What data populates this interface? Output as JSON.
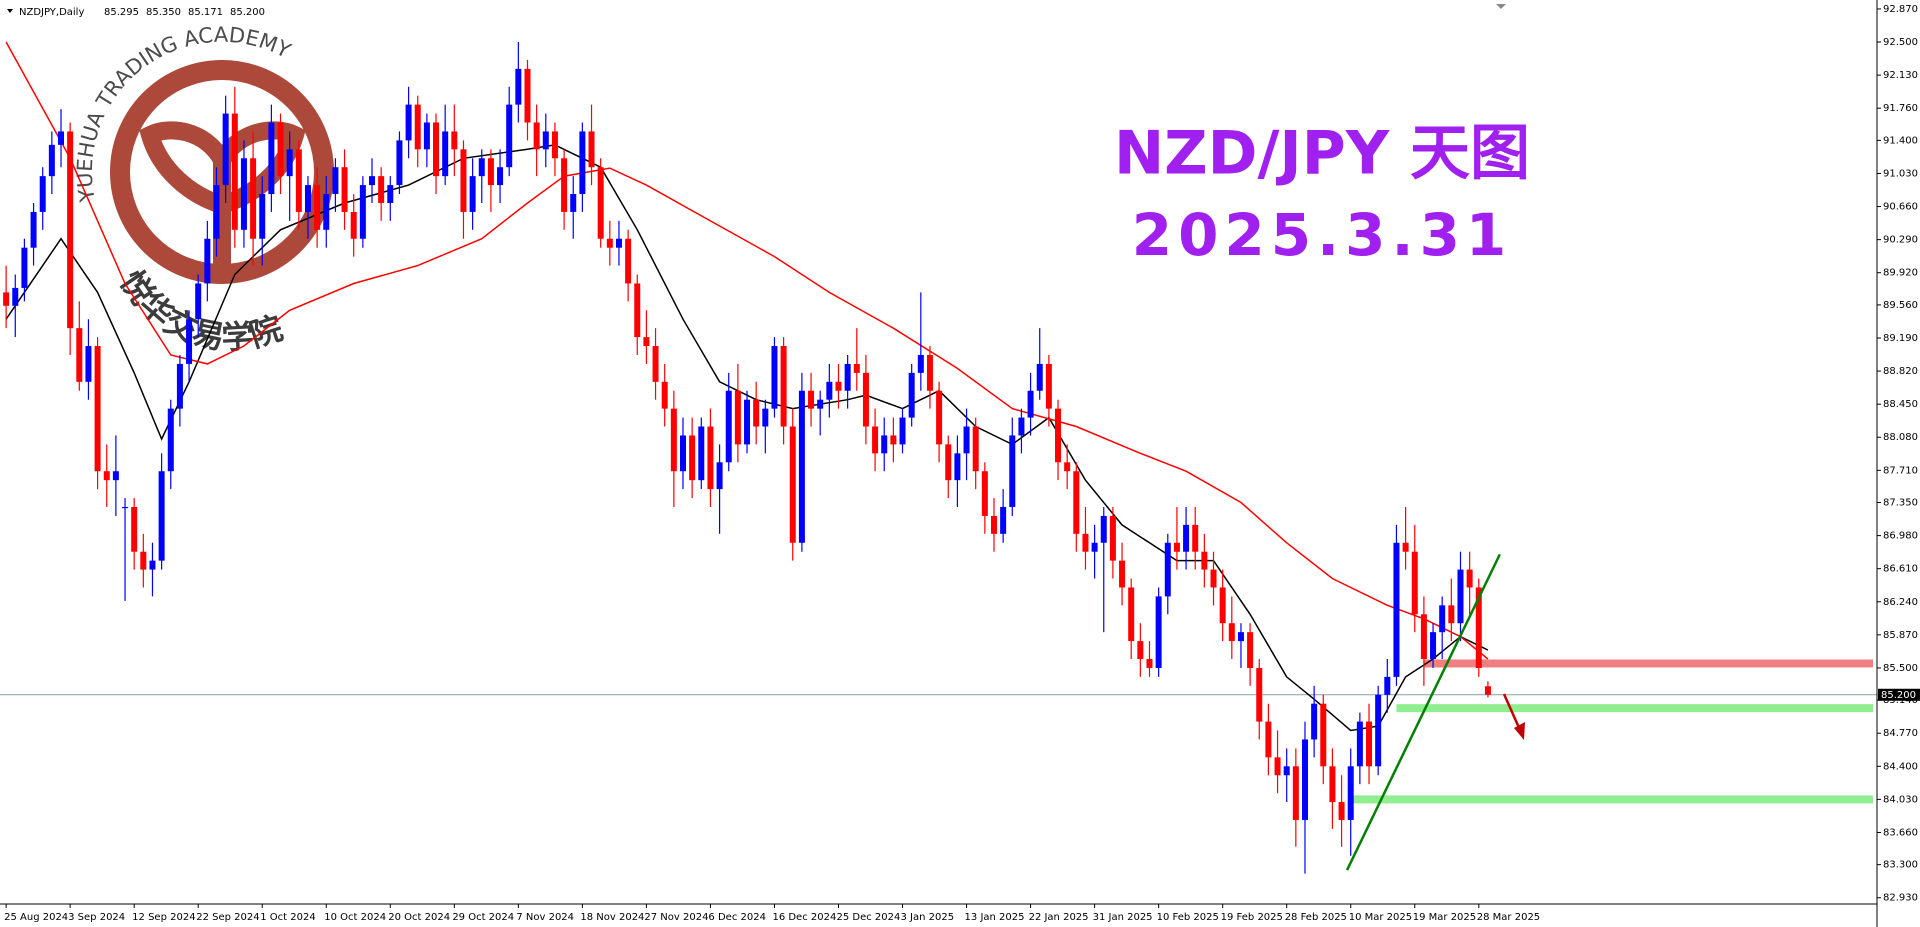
{
  "chart_data": {
    "type": "candlestick",
    "header": "NZDJPY,Daily",
    "header_values": [
      {
        "value": 85.295,
        "label": "85.295"
      },
      {
        "value": 85.35,
        "label": "85.350"
      },
      {
        "value": 85.171,
        "label": "85.171"
      },
      {
        "value": 85.2,
        "label": "85.200"
      }
    ],
    "title": "NZD/JPY 天图",
    "subtitle": "2025.3.31",
    "watermark": "YUEHUA TRADING ACADEMY",
    "watermark_cn": "悦华交易学院",
    "up_color": "#0000ff",
    "down_color": "#ff0000",
    "ylim": [
      82.86,
      92.97
    ],
    "yticks": [
      {
        "value": 92.87,
        "label": "92.870"
      },
      {
        "value": 92.5,
        "label": "92.500"
      },
      {
        "value": 92.13,
        "label": "92.130"
      },
      {
        "value": 91.76,
        "label": "91.760"
      },
      {
        "value": 91.4,
        "label": "91.400"
      },
      {
        "value": 91.03,
        "label": "91.030"
      },
      {
        "value": 90.66,
        "label": "90.660"
      },
      {
        "value": 90.29,
        "label": "90.290"
      },
      {
        "value": 89.92,
        "label": "89.920"
      },
      {
        "value": 89.56,
        "label": "89.560"
      },
      {
        "value": 89.19,
        "label": "89.190"
      },
      {
        "value": 88.82,
        "label": "88.820"
      },
      {
        "value": 88.45,
        "label": "88.450"
      },
      {
        "value": 88.08,
        "label": "88.080"
      },
      {
        "value": 87.71,
        "label": "87.710"
      },
      {
        "value": 87.35,
        "label": "87.350"
      },
      {
        "value": 86.98,
        "label": "86.980"
      },
      {
        "value": 86.61,
        "label": "86.610"
      },
      {
        "value": 86.24,
        "label": "86.240"
      },
      {
        "value": 85.87,
        "label": "85.870"
      },
      {
        "value": 85.5,
        "label": "85.500"
      },
      {
        "value": 85.14,
        "label": "85.140"
      },
      {
        "value": 84.77,
        "label": "84.770"
      },
      {
        "value": 84.4,
        "label": "84.400"
      },
      {
        "value": 84.03,
        "label": "84.030"
      },
      {
        "value": 83.66,
        "label": "83.660"
      },
      {
        "value": 83.3,
        "label": "83.300"
      },
      {
        "value": 82.93,
        "label": "82.930"
      }
    ],
    "last_price": {
      "value": 85.2,
      "label": "85.200"
    },
    "categories": [
      "25 Aug 2024",
      null,
      null,
      null,
      null,
      null,
      null,
      "3 Sep 2024",
      null,
      null,
      null,
      null,
      null,
      null,
      "12 Sep 2024",
      null,
      null,
      null,
      null,
      null,
      null,
      "22 Sep 2024",
      null,
      null,
      null,
      null,
      null,
      null,
      "1 Oct 2024",
      null,
      null,
      null,
      null,
      null,
      null,
      "10 Oct 2024",
      null,
      null,
      null,
      null,
      null,
      null,
      "20 Oct 2024",
      null,
      null,
      null,
      null,
      null,
      null,
      "29 Oct 2024",
      null,
      null,
      null,
      null,
      null,
      null,
      "7 Nov 2024",
      null,
      null,
      null,
      null,
      null,
      null,
      "18 Nov 2024",
      null,
      null,
      null,
      null,
      null,
      null,
      "27 Nov 2024",
      null,
      null,
      null,
      null,
      null,
      null,
      "6 Dec 2024",
      null,
      null,
      null,
      null,
      null,
      null,
      "16 Dec 2024",
      null,
      null,
      null,
      null,
      null,
      null,
      "25 Dec 2024",
      null,
      null,
      null,
      null,
      null,
      null,
      "3 Jan 2025",
      null,
      null,
      null,
      null,
      null,
      null,
      "13 Jan 2025",
      null,
      null,
      null,
      null,
      null,
      null,
      "22 Jan 2025",
      null,
      null,
      null,
      null,
      null,
      null,
      "31 Jan 2025",
      null,
      null,
      null,
      null,
      null,
      null,
      "10 Feb 2025",
      null,
      null,
      null,
      null,
      null,
      null,
      "19 Feb 2025",
      null,
      null,
      null,
      null,
      null,
      null,
      "28 Feb 2025",
      null,
      null,
      null,
      null,
      null,
      null,
      "10 Mar 2025",
      null,
      null,
      null,
      null,
      null,
      null,
      "19 Mar 2025",
      null,
      null,
      null,
      null,
      null,
      null,
      "28 Mar 2025",
      null
    ],
    "candles": [
      [
        89.7,
        90.0,
        89.3,
        89.55
      ],
      [
        89.55,
        89.9,
        89.2,
        89.75
      ],
      [
        89.75,
        90.3,
        89.6,
        90.2
      ],
      [
        90.2,
        90.7,
        90.0,
        90.6
      ],
      [
        90.6,
        91.1,
        90.4,
        91.0
      ],
      [
        91.0,
        91.5,
        90.8,
        91.35
      ],
      [
        91.35,
        91.75,
        91.1,
        91.5
      ],
      [
        91.5,
        91.6,
        89.0,
        89.3
      ],
      [
        89.3,
        89.6,
        88.6,
        88.7
      ],
      [
        88.7,
        89.4,
        88.5,
        89.1
      ],
      [
        89.1,
        89.2,
        87.5,
        87.7
      ],
      [
        87.7,
        88.0,
        87.3,
        87.6
      ],
      [
        87.6,
        88.1,
        87.2,
        87.7
      ],
      [
        87.3,
        87.4,
        86.25,
        87.3
      ],
      [
        87.3,
        87.4,
        86.6,
        86.8
      ],
      [
        86.8,
        87.0,
        86.4,
        86.6
      ],
      [
        86.6,
        86.9,
        86.3,
        86.7
      ],
      [
        86.7,
        87.9,
        86.6,
        87.7
      ],
      [
        87.7,
        88.5,
        87.5,
        88.4
      ],
      [
        88.4,
        89.0,
        88.2,
        88.9
      ],
      [
        88.9,
        89.5,
        88.7,
        89.4
      ],
      [
        89.4,
        89.9,
        89.2,
        89.8
      ],
      [
        89.8,
        90.5,
        89.6,
        90.3
      ],
      [
        90.3,
        91.1,
        90.1,
        90.9
      ],
      [
        90.9,
        91.9,
        90.7,
        91.7
      ],
      [
        91.7,
        92.0,
        90.2,
        90.4
      ],
      [
        90.4,
        91.4,
        90.2,
        91.2
      ],
      [
        91.2,
        91.5,
        90.0,
        90.3
      ],
      [
        90.3,
        91.0,
        90.0,
        90.8
      ],
      [
        90.8,
        91.8,
        90.6,
        91.6
      ],
      [
        91.6,
        91.7,
        90.8,
        91.0
      ],
      [
        91.0,
        91.5,
        90.5,
        91.3
      ],
      [
        91.3,
        91.4,
        90.4,
        90.6
      ],
      [
        90.6,
        91.0,
        90.3,
        90.9
      ],
      [
        90.9,
        91.1,
        90.2,
        90.4
      ],
      [
        90.4,
        91.0,
        90.2,
        90.8
      ],
      [
        90.8,
        91.2,
        90.6,
        91.1
      ],
      [
        91.1,
        91.3,
        90.4,
        90.6
      ],
      [
        90.6,
        90.8,
        90.1,
        90.3
      ],
      [
        90.3,
        91.0,
        90.2,
        90.9
      ],
      [
        90.9,
        91.2,
        90.7,
        91.0
      ],
      [
        91.0,
        91.1,
        90.5,
        90.7
      ],
      [
        90.7,
        91.0,
        90.5,
        90.9
      ],
      [
        90.9,
        91.5,
        90.8,
        91.4
      ],
      [
        91.4,
        92.0,
        91.2,
        91.8
      ],
      [
        91.8,
        91.9,
        91.1,
        91.3
      ],
      [
        91.3,
        91.7,
        91.1,
        91.6
      ],
      [
        91.6,
        91.7,
        90.8,
        91.0
      ],
      [
        91.0,
        91.8,
        90.9,
        91.5
      ],
      [
        91.5,
        91.8,
        91.0,
        91.3
      ],
      [
        91.3,
        91.4,
        90.3,
        90.6
      ],
      [
        90.6,
        91.2,
        90.4,
        91.0
      ],
      [
        91.0,
        91.3,
        90.7,
        91.2
      ],
      [
        91.2,
        91.3,
        90.6,
        90.9
      ],
      [
        90.9,
        91.3,
        90.7,
        91.1
      ],
      [
        91.1,
        92.0,
        91.0,
        91.8
      ],
      [
        91.8,
        92.5,
        91.6,
        92.2
      ],
      [
        92.2,
        92.3,
        91.4,
        91.6
      ],
      [
        91.6,
        91.8,
        91.0,
        91.3
      ],
      [
        91.3,
        91.7,
        91.1,
        91.5
      ],
      [
        91.5,
        91.6,
        91.0,
        91.2
      ],
      [
        91.2,
        91.3,
        90.4,
        90.6
      ],
      [
        90.6,
        91.0,
        90.3,
        90.8
      ],
      [
        90.8,
        91.6,
        90.6,
        91.5
      ],
      [
        91.5,
        91.8,
        90.9,
        91.1
      ],
      [
        91.1,
        91.2,
        90.2,
        90.3
      ],
      [
        90.3,
        90.5,
        90.0,
        90.2
      ],
      [
        90.2,
        90.5,
        90.0,
        90.3
      ],
      [
        90.3,
        90.4,
        89.6,
        89.8
      ],
      [
        89.8,
        89.9,
        89.0,
        89.2
      ],
      [
        89.2,
        89.5,
        88.9,
        89.1
      ],
      [
        89.1,
        89.3,
        88.5,
        88.7
      ],
      [
        88.7,
        88.9,
        88.2,
        88.4
      ],
      [
        88.4,
        88.6,
        87.3,
        87.7
      ],
      [
        87.7,
        88.3,
        87.5,
        88.1
      ],
      [
        88.1,
        88.3,
        87.4,
        87.6
      ],
      [
        87.6,
        88.3,
        87.5,
        88.2
      ],
      [
        88.2,
        88.4,
        87.3,
        87.5
      ],
      [
        87.5,
        88.0,
        87.0,
        87.8
      ],
      [
        87.8,
        88.8,
        87.7,
        88.6
      ],
      [
        88.6,
        88.9,
        87.8,
        88.0
      ],
      [
        88.0,
        88.6,
        87.9,
        88.5
      ],
      [
        88.5,
        88.7,
        88.0,
        88.2
      ],
      [
        88.2,
        88.5,
        87.9,
        88.4
      ],
      [
        88.4,
        89.2,
        88.3,
        89.1
      ],
      [
        89.1,
        89.2,
        88.0,
        88.2
      ],
      [
        88.2,
        88.4,
        86.7,
        86.9
      ],
      [
        86.9,
        88.8,
        86.8,
        88.6
      ],
      [
        88.6,
        88.8,
        88.2,
        88.4
      ],
      [
        88.4,
        88.6,
        88.1,
        88.5
      ],
      [
        88.5,
        88.9,
        88.3,
        88.7
      ],
      [
        88.7,
        88.9,
        88.4,
        88.6
      ],
      [
        88.6,
        89.0,
        88.4,
        88.9
      ],
      [
        88.9,
        89.3,
        88.6,
        88.8
      ],
      [
        88.8,
        89.0,
        88.0,
        88.2
      ],
      [
        88.2,
        88.4,
        87.7,
        87.9
      ],
      [
        87.9,
        88.3,
        87.7,
        88.1
      ],
      [
        88.1,
        88.3,
        87.8,
        88.0
      ],
      [
        88.0,
        88.4,
        87.9,
        88.3
      ],
      [
        88.3,
        88.9,
        88.2,
        88.8
      ],
      [
        88.8,
        89.7,
        88.6,
        89.0
      ],
      [
        89.0,
        89.1,
        88.4,
        88.6
      ],
      [
        88.6,
        88.7,
        87.8,
        88.0
      ],
      [
        88.0,
        88.1,
        87.4,
        87.6
      ],
      [
        87.6,
        88.1,
        87.3,
        87.9
      ],
      [
        87.9,
        88.4,
        87.6,
        88.2
      ],
      [
        88.2,
        88.3,
        87.5,
        87.7
      ],
      [
        87.7,
        87.8,
        87.0,
        87.2
      ],
      [
        87.2,
        87.4,
        86.8,
        87.0
      ],
      [
        87.0,
        87.5,
        86.9,
        87.3
      ],
      [
        87.3,
        88.3,
        87.2,
        88.1
      ],
      [
        88.1,
        88.4,
        87.9,
        88.3
      ],
      [
        88.3,
        88.8,
        88.1,
        88.6
      ],
      [
        88.6,
        89.3,
        88.5,
        88.9
      ],
      [
        88.9,
        89.0,
        88.2,
        88.4
      ],
      [
        88.4,
        88.5,
        87.6,
        87.8
      ],
      [
        87.8,
        88.0,
        87.5,
        87.7
      ],
      [
        87.7,
        87.8,
        86.8,
        87.0
      ],
      [
        87.0,
        87.3,
        86.6,
        86.8
      ],
      [
        86.8,
        87.1,
        86.5,
        86.9
      ],
      [
        86.9,
        87.3,
        85.9,
        87.2
      ],
      [
        87.2,
        87.3,
        86.5,
        86.7
      ],
      [
        86.7,
        86.9,
        86.2,
        86.4
      ],
      [
        86.4,
        86.5,
        85.6,
        85.8
      ],
      [
        85.8,
        86.0,
        85.4,
        85.6
      ],
      [
        85.6,
        85.8,
        85.4,
        85.5
      ],
      [
        85.5,
        86.4,
        85.4,
        86.3
      ],
      [
        86.3,
        87.0,
        86.1,
        86.9
      ],
      [
        86.9,
        87.3,
        86.6,
        86.8
      ],
      [
        86.8,
        87.3,
        86.6,
        87.1
      ],
      [
        87.1,
        87.3,
        86.6,
        86.8
      ],
      [
        86.8,
        87.0,
        86.4,
        86.6
      ],
      [
        86.6,
        86.8,
        86.2,
        86.4
      ],
      [
        86.4,
        86.6,
        85.8,
        86.0
      ],
      [
        86.0,
        86.3,
        85.6,
        85.8
      ],
      [
        85.8,
        86.0,
        85.5,
        85.9
      ],
      [
        85.9,
        86.0,
        85.3,
        85.5
      ],
      [
        85.5,
        85.6,
        84.7,
        84.9
      ],
      [
        84.9,
        85.1,
        84.3,
        84.5
      ],
      [
        84.5,
        84.8,
        84.1,
        84.3
      ],
      [
        84.3,
        84.6,
        84.0,
        84.4
      ],
      [
        84.4,
        84.6,
        83.5,
        83.8
      ],
      [
        83.8,
        84.9,
        83.2,
        84.7
      ],
      [
        84.7,
        85.3,
        84.5,
        85.1
      ],
      [
        85.1,
        85.2,
        84.2,
        84.4
      ],
      [
        84.4,
        84.6,
        83.7,
        84.0
      ],
      [
        84.0,
        84.3,
        83.5,
        83.8
      ],
      [
        83.8,
        84.6,
        83.4,
        84.4
      ],
      [
        84.4,
        85.0,
        84.2,
        84.9
      ],
      [
        84.9,
        85.1,
        84.2,
        84.4
      ],
      [
        84.4,
        85.3,
        84.3,
        85.2
      ],
      [
        85.2,
        85.6,
        85.0,
        85.4
      ],
      [
        85.4,
        87.1,
        85.3,
        86.9
      ],
      [
        86.9,
        87.3,
        86.6,
        86.8
      ],
      [
        86.8,
        87.1,
        85.9,
        86.1
      ],
      [
        86.1,
        86.3,
        85.3,
        85.6
      ],
      [
        85.6,
        86.0,
        85.5,
        85.9
      ],
      [
        85.9,
        86.3,
        85.6,
        86.2
      ],
      [
        86.2,
        86.5,
        85.8,
        86.0
      ],
      [
        86.0,
        86.8,
        85.8,
        86.6
      ],
      [
        86.6,
        86.8,
        86.1,
        86.4
      ],
      [
        86.4,
        86.5,
        85.4,
        85.5
      ],
      [
        85.295,
        85.35,
        85.171,
        85.2
      ]
    ],
    "lines": [
      {
        "color": "#000000",
        "x": [
          0,
          6,
          10,
          14,
          17,
          20,
          25,
          30,
          37,
          44,
          50,
          57,
          60,
          65,
          69,
          74,
          78,
          82,
          86,
          92,
          94,
          98,
          102,
          106,
          110,
          114,
          118,
          122,
          125,
          128,
          132,
          136,
          140,
          143,
          147,
          150,
          153,
          156,
          159,
          162
        ],
        "values": [
          89.4,
          90.3,
          89.7,
          88.8,
          88.06,
          88.7,
          89.9,
          90.4,
          90.7,
          90.9,
          91.2,
          91.3,
          91.35,
          91.1,
          90.4,
          89.4,
          88.7,
          88.5,
          88.4,
          88.5,
          88.55,
          88.4,
          88.6,
          88.2,
          88.0,
          88.3,
          87.6,
          87.1,
          86.9,
          86.7,
          86.7,
          86.1,
          85.4,
          85.15,
          84.8,
          84.85,
          85.4,
          85.6,
          85.85,
          85.7
        ]
      },
      {
        "color": "#ff0000",
        "x": [
          0,
          7,
          13,
          18,
          22,
          26,
          31,
          38,
          45,
          52,
          57,
          61,
          66,
          70,
          77,
          84,
          90,
          97,
          104,
          110,
          117,
          124,
          129,
          135,
          140,
          145,
          151,
          155,
          159,
          162
        ],
        "values": [
          92.5,
          91.2,
          89.8,
          89.0,
          88.9,
          89.1,
          89.5,
          89.8,
          90.0,
          90.3,
          90.7,
          91.0,
          91.09,
          90.9,
          90.5,
          90.1,
          89.7,
          89.3,
          88.85,
          88.4,
          88.2,
          87.9,
          87.7,
          87.35,
          86.9,
          86.5,
          86.2,
          86.05,
          85.85,
          85.6
        ]
      }
    ],
    "levels": [
      {
        "value": 85.55,
        "start": 155,
        "color": "#f08080"
      },
      {
        "value": 85.05,
        "start": 152,
        "color": "#90ee90"
      },
      {
        "value": 84.03,
        "start": 147,
        "color": "#90ee90"
      }
    ],
    "trendline": {
      "color": "#008000",
      "x": [
        146.6,
        163.3
      ],
      "values": [
        83.24,
        86.77
      ]
    }
  }
}
